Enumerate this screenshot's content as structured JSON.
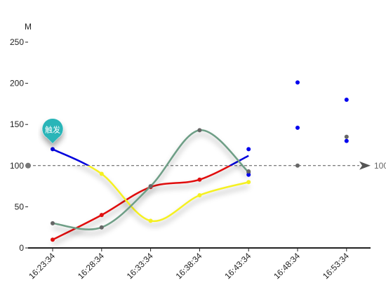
{
  "chart_data": {
    "type": "line",
    "y_unit": "M",
    "categories": [
      "16:23:34",
      "16:28:34",
      "16:33:34",
      "16:38:34",
      "16:43:34",
      "16:48:34",
      "16:53:34"
    ],
    "ylim": [
      0,
      250
    ],
    "yticks": [
      0,
      50,
      100,
      150,
      200,
      250
    ],
    "grid": false,
    "series": [
      {
        "color": "#e01010",
        "smooth": true,
        "values": [
          10,
          40,
          74,
          83,
          112,
          null,
          null
        ]
      },
      {
        "color": "#f5f020",
        "smooth": true,
        "values": [
          120,
          90,
          33,
          64,
          80,
          null,
          null
        ]
      },
      {
        "color": "#6e9e86",
        "smooth": true,
        "values": [
          30,
          25,
          75,
          143,
          92,
          null,
          null
        ]
      }
    ],
    "scatter_points": [
      {
        "color": "#0000ee",
        "x": "16:43:34",
        "y": 120
      },
      {
        "color": "#0000ee",
        "x": "16:43:34",
        "y": 89
      },
      {
        "color": "#0000ee",
        "x": "16:48:34",
        "y": 201
      },
      {
        "color": "#0000ee",
        "x": "16:48:34",
        "y": 146
      },
      {
        "color": "#0000ee",
        "x": "16:53:34",
        "y": 180
      },
      {
        "color": "#0000ee",
        "x": "16:53:34",
        "y": 130
      },
      {
        "color": "#666666",
        "x": "16:43:34",
        "y": 93
      },
      {
        "color": "#666666",
        "x": "16:48:34",
        "y": 100
      },
      {
        "color": "#666666",
        "x": "16:53:34",
        "y": 135
      }
    ],
    "threshold": {
      "value": 100,
      "label": "100",
      "color": "#555555"
    },
    "markpoint": {
      "label": "触发",
      "x": "16:23:34",
      "y": 120,
      "color": "#2bb5b8"
    },
    "segment_colors": {
      "above_threshold": "#0000dd",
      "below_threshold": "#f5f020"
    },
    "axis_gradient": [
      "#e01060",
      "#0000dd"
    ]
  }
}
